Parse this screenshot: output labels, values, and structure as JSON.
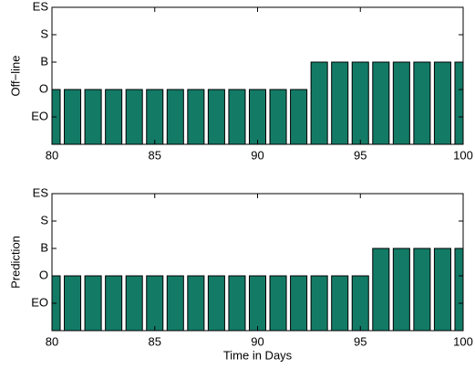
{
  "chart_data": [
    {
      "type": "bar",
      "ylabel": "Off−line",
      "x": [
        80,
        81,
        82,
        83,
        84,
        85,
        86,
        87,
        88,
        89,
        90,
        91,
        92,
        93,
        94,
        95,
        96,
        97,
        98,
        99,
        100
      ],
      "values": [
        2,
        2,
        2,
        2,
        2,
        2,
        2,
        2,
        2,
        2,
        2,
        2,
        2,
        3,
        3,
        3,
        3,
        3,
        3,
        3,
        3
      ],
      "color": "#137a66",
      "xlim": [
        80,
        100
      ],
      "xticks": [
        80,
        85,
        90,
        95,
        100
      ],
      "ylim": [
        0,
        5
      ],
      "yticks": [
        {
          "value": 1,
          "label": "EO"
        },
        {
          "value": 2,
          "label": "O"
        },
        {
          "value": 3,
          "label": "B"
        },
        {
          "value": 4,
          "label": "S"
        },
        {
          "value": 5,
          "label": "ES"
        }
      ]
    },
    {
      "type": "bar",
      "ylabel": "Prediction",
      "xlabel": "Time in Days",
      "x": [
        80,
        81,
        82,
        83,
        84,
        85,
        86,
        87,
        88,
        89,
        90,
        91,
        92,
        93,
        94,
        95,
        96,
        97,
        98,
        99,
        100
      ],
      "values": [
        2,
        2,
        2,
        2,
        2,
        2,
        2,
        2,
        2,
        2,
        2,
        2,
        2,
        2,
        2,
        2,
        3,
        3,
        3,
        3,
        3
      ],
      "color": "#137a66",
      "xlim": [
        80,
        100
      ],
      "xticks": [
        80,
        85,
        90,
        95,
        100
      ],
      "ylim": [
        0,
        5
      ],
      "yticks": [
        {
          "value": 1,
          "label": "EO"
        },
        {
          "value": 2,
          "label": "O"
        },
        {
          "value": 3,
          "label": "B"
        },
        {
          "value": 4,
          "label": "S"
        },
        {
          "value": 5,
          "label": "ES"
        }
      ]
    }
  ]
}
